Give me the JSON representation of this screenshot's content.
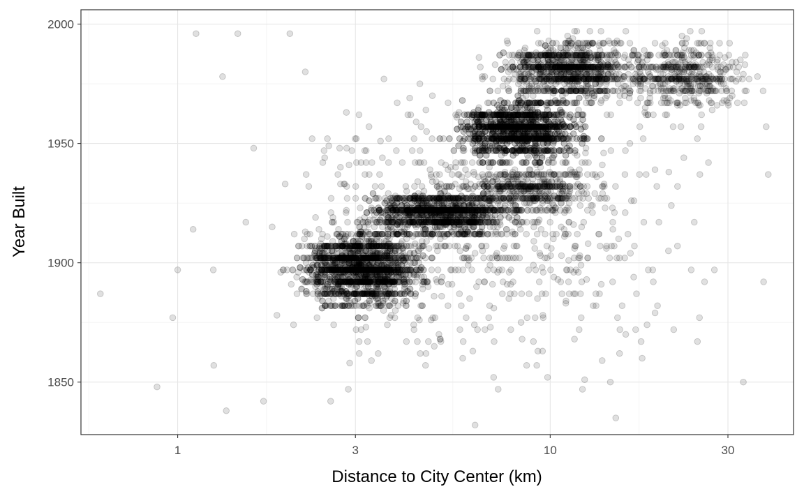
{
  "chart_data": {
    "type": "scatter",
    "title": "",
    "xlabel": "Distance to City Center (km)",
    "ylabel": "Year Built",
    "x_scale": "log10",
    "xlim": [
      0.55,
      45
    ],
    "ylim": [
      1828,
      2006
    ],
    "x_ticks": [
      1,
      3,
      10,
      30
    ],
    "x_tick_labels": [
      "1",
      "3",
      "10",
      "30"
    ],
    "y_ticks": [
      1850,
      1900,
      1950,
      2000
    ],
    "y_tick_labels": [
      "1850",
      "1900",
      "1950",
      "2000"
    ],
    "grid": true,
    "theme": "bw",
    "point_color": "#000000",
    "point_alpha": 0.12,
    "approximate_point_count": 9000,
    "density_clusters": [
      {
        "x_range_km": [
          1.9,
          5.2
        ],
        "y_range": [
          1878,
          1918
        ],
        "weight": 0.26
      },
      {
        "x_range_km": [
          2.8,
          9.5
        ],
        "y_range": [
          1910,
          1932
        ],
        "weight": 0.18
      },
      {
        "x_range_km": [
          5.0,
          14.0
        ],
        "y_range": [
          1940,
          1972
        ],
        "weight": 0.22
      },
      {
        "x_range_km": [
          6.5,
          20.0
        ],
        "y_range": [
          1965,
          1997
        ],
        "weight": 0.14
      },
      {
        "x_range_km": [
          14.0,
          38.0
        ],
        "y_range": [
          1960,
          1997
        ],
        "weight": 0.06
      },
      {
        "x_range_km": [
          5.0,
          16.0
        ],
        "y_range": [
          1920,
          1942
        ],
        "weight": 0.06
      },
      {
        "x_range_km": [
          1.2,
          40.0
        ],
        "y_range": [
          1835,
          1997
        ],
        "weight": 0.08
      }
    ],
    "sample_points": [
      {
        "x": 0.62,
        "y": 1887
      },
      {
        "x": 0.88,
        "y": 1848
      },
      {
        "x": 0.97,
        "y": 1877
      },
      {
        "x": 1.0,
        "y": 1897
      },
      {
        "x": 1.1,
        "y": 1914
      },
      {
        "x": 1.12,
        "y": 1996
      },
      {
        "x": 1.25,
        "y": 1857
      },
      {
        "x": 1.32,
        "y": 1978
      },
      {
        "x": 1.35,
        "y": 1838
      },
      {
        "x": 1.45,
        "y": 1996
      },
      {
        "x": 1.6,
        "y": 1948
      },
      {
        "x": 1.7,
        "y": 1842
      },
      {
        "x": 2.0,
        "y": 1996
      },
      {
        "x": 2.2,
        "y": 1980
      },
      {
        "x": 14.5,
        "y": 1850
      },
      {
        "x": 15.0,
        "y": 1835
      },
      {
        "x": 33.0,
        "y": 1850
      },
      {
        "x": 36.0,
        "y": 1978
      },
      {
        "x": 38.0,
        "y": 1957
      },
      {
        "x": 38.5,
        "y": 1937
      }
    ]
  }
}
